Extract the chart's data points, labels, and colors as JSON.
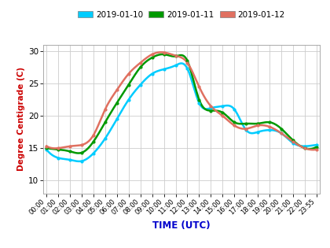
{
  "xlabel": "TIME (UTC)",
  "ylabel": "Degree Centigrade (C)",
  "xlabel_color": "#0000cc",
  "ylabel_color": "#cc0000",
  "background_color": "#ffffff",
  "grid_color": "#cccccc",
  "ylim": [
    8,
    31
  ],
  "yticks": [
    10,
    15,
    20,
    25,
    30
  ],
  "legend": [
    "2019-01-10",
    "2019-01-11",
    "2019-01-12"
  ],
  "line_colors": [
    "#00ccff",
    "#009900",
    "#e07060"
  ],
  "time_labels": [
    "00:00",
    "01:00",
    "02:00",
    "03:00",
    "04:00",
    "05:00",
    "06:00",
    "07:00",
    "08:00",
    "09:00",
    "10:00",
    "11:00",
    "12:00",
    "13:00",
    "14:00",
    "15:00",
    "16:00",
    "17:00",
    "18:00",
    "19:00",
    "20:00",
    "21:00",
    "22:00",
    "23:55"
  ],
  "day1": [
    14.8,
    13.5,
    13.2,
    13.0,
    14.2,
    16.5,
    19.5,
    22.5,
    24.8,
    26.5,
    27.2,
    27.8,
    27.3,
    22.0,
    21.2,
    21.5,
    21.0,
    17.8,
    17.5,
    17.8,
    17.3,
    15.8,
    15.3,
    15.5
  ],
  "day2": [
    15.0,
    14.8,
    14.5,
    14.3,
    16.0,
    19.0,
    22.0,
    24.8,
    27.5,
    29.0,
    29.5,
    29.2,
    28.5,
    22.5,
    20.8,
    20.5,
    19.0,
    18.8,
    18.8,
    19.0,
    18.0,
    16.2,
    15.0,
    15.2
  ],
  "day3": [
    15.3,
    15.0,
    15.3,
    15.5,
    17.0,
    21.0,
    24.0,
    26.5,
    28.2,
    29.5,
    29.8,
    29.3,
    28.2,
    24.5,
    21.5,
    20.0,
    18.5,
    18.0,
    18.5,
    18.3,
    17.3,
    16.0,
    15.0,
    14.8
  ]
}
